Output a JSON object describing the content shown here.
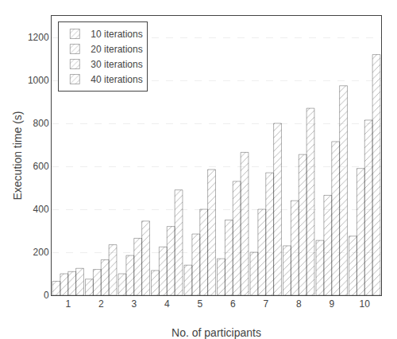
{
  "chart_data": {
    "type": "bar",
    "xlabel": "No. of participants",
    "ylabel": "Execution time (s)",
    "categories": [
      "1",
      "2",
      "3",
      "4",
      "5",
      "6",
      "7",
      "8",
      "9",
      "10"
    ],
    "series": [
      {
        "name": "10 iterations",
        "color": "#F5C8A0",
        "values": [
          65,
          75,
          100,
          115,
          140,
          170,
          200,
          230,
          255,
          275
        ]
      },
      {
        "name": "20 iterations",
        "color": "#A8D8A8",
        "values": [
          100,
          120,
          185,
          225,
          285,
          350,
          400,
          440,
          465,
          590
        ]
      },
      {
        "name": "30 iterations",
        "color": "#B8A8D8",
        "values": [
          110,
          165,
          265,
          320,
          400,
          530,
          570,
          655,
          715,
          815
        ]
      },
      {
        "name": "40 iterations",
        "color": "#F0F0A0",
        "values": [
          125,
          235,
          345,
          490,
          585,
          665,
          800,
          870,
          975,
          1120
        ]
      }
    ],
    "ylim": [
      0,
      1300
    ],
    "yticks": [
      0,
      200,
      400,
      600,
      800,
      1000,
      1200
    ],
    "grid": true,
    "legend": "upper left"
  }
}
